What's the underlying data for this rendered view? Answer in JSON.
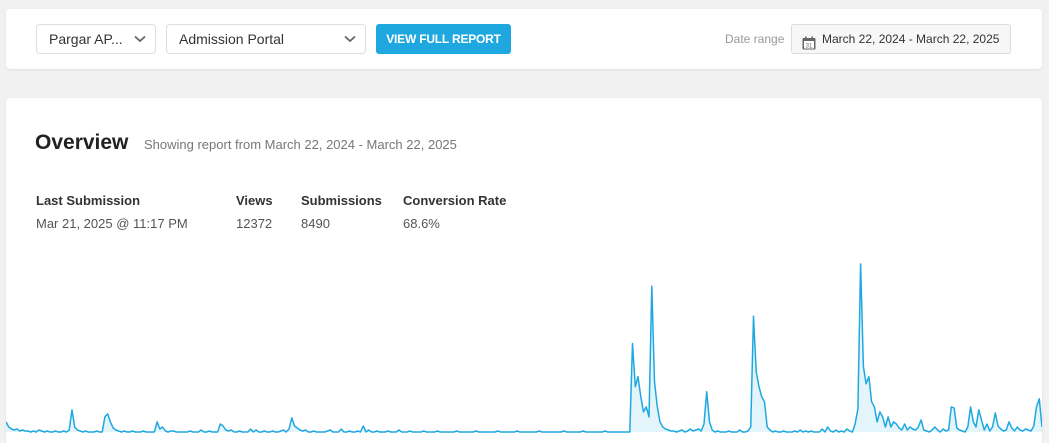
{
  "toolbar": {
    "form_select": "Pargar AP...",
    "portal_select": "Admission Portal",
    "report_button": "VIEW FULL REPORT",
    "date_range_label": "Date range",
    "date_range_value": "March 22, 2024 - March 22, 2025",
    "calendar_day": "31"
  },
  "overview": {
    "title": "Overview",
    "subtitle": "Showing report from March 22, 2024 - March 22, 2025",
    "stats": [
      {
        "label": "Last Submission",
        "value": "Mar 21, 2025 @ 11:17 PM"
      },
      {
        "label": "Views",
        "value": "12372"
      },
      {
        "label": "Submissions",
        "value": "8490"
      },
      {
        "label": "Conversion Rate",
        "value": "68.6%"
      }
    ]
  },
  "colors": {
    "accent": "#1fa8e0",
    "chart_line": "#1fa8e0",
    "chart_fill": "#e3f4fb"
  },
  "chart_data": {
    "type": "area",
    "title": "",
    "xlabel": "",
    "ylabel": "",
    "x_range": [
      "2024-03-22",
      "2025-03-22"
    ],
    "grid": false,
    "series": [
      {
        "values": [
          10,
          5,
          3,
          2,
          3,
          1,
          2,
          1,
          1,
          0,
          1,
          0,
          2,
          1,
          0,
          1,
          0,
          0,
          1,
          0,
          0,
          1,
          0,
          2,
          22,
          5,
          2,
          1,
          0,
          1,
          0,
          0,
          0,
          1,
          0,
          0,
          15,
          18,
          10,
          4,
          2,
          1,
          0,
          1,
          0,
          0,
          1,
          0,
          0,
          0,
          1,
          0,
          0,
          0,
          0,
          10,
          3,
          5,
          1,
          0,
          1,
          1,
          0,
          0,
          0,
          0,
          0,
          1,
          0,
          0,
          0,
          2,
          0,
          0,
          1,
          0,
          0,
          0,
          8,
          6,
          2,
          1,
          2,
          0,
          0,
          1,
          0,
          0,
          0,
          3,
          0,
          2,
          0,
          0,
          1,
          0,
          0,
          1,
          0,
          0,
          1,
          2,
          0,
          3,
          14,
          6,
          4,
          2,
          1,
          2,
          0,
          0,
          1,
          0,
          0,
          0,
          0,
          1,
          2,
          0,
          0,
          0,
          3,
          0,
          0,
          1,
          0,
          0,
          1,
          0,
          6,
          0,
          2,
          0,
          0,
          1,
          0,
          0,
          0,
          1,
          0,
          0,
          0,
          2,
          0,
          0,
          0,
          1,
          0,
          0,
          0,
          0,
          1,
          0,
          0,
          0,
          0,
          1,
          0,
          0,
          0,
          0,
          0,
          0,
          1,
          0,
          0,
          0,
          0,
          0,
          0,
          1,
          0,
          0,
          0,
          0,
          0,
          0,
          0,
          1,
          0,
          0,
          0,
          0,
          0,
          0,
          1,
          0,
          0,
          0,
          0,
          0,
          0,
          0,
          1,
          0,
          0,
          0,
          0,
          0,
          0,
          0,
          0,
          1,
          0,
          0,
          0,
          0,
          0,
          0,
          1,
          0,
          0,
          0,
          0,
          0,
          0,
          0,
          1,
          0,
          0,
          0,
          0,
          0,
          0,
          0,
          0,
          0,
          88,
          45,
          55,
          35,
          20,
          25,
          15,
          145,
          50,
          25,
          10,
          5,
          3,
          2,
          1,
          1,
          0,
          1,
          2,
          0,
          1,
          3,
          1,
          2,
          3,
          1,
          8,
          40,
          10,
          2,
          0,
          1,
          0,
          0,
          0,
          1,
          0,
          0,
          0,
          2,
          0,
          0,
          1,
          5,
          115,
          60,
          45,
          35,
          30,
          5,
          2,
          0,
          1,
          0,
          0,
          1,
          0,
          0,
          0,
          1,
          0,
          2,
          0,
          1,
          0,
          1,
          0,
          0,
          0,
          3,
          0,
          5,
          1,
          0,
          2,
          0,
          1,
          0,
          3,
          1,
          0,
          8,
          23,
          167,
          65,
          48,
          55,
          30,
          25,
          10,
          20,
          15,
          5,
          15,
          5,
          10,
          8,
          4,
          2,
          8,
          2,
          5,
          3,
          2,
          5,
          12,
          2,
          1,
          0,
          2,
          5,
          2,
          0,
          3,
          1,
          2,
          25,
          24,
          4,
          2,
          1,
          0,
          5,
          25,
          10,
          5,
          22,
          12,
          2,
          8,
          1,
          5,
          19,
          6,
          3,
          1,
          2,
          10,
          4,
          1,
          5,
          2,
          1,
          3,
          2,
          1,
          6,
          25,
          33,
          5
        ]
      }
    ]
  }
}
